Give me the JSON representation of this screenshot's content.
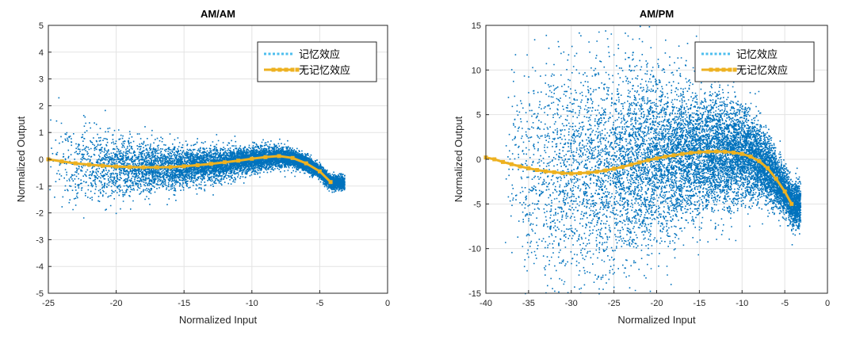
{
  "chart_data": [
    {
      "type": "scatter",
      "title": "AM/AM",
      "xlabel": "Normalized Input",
      "ylabel": "Normalized Output",
      "xlim": [
        -25,
        0
      ],
      "ylim": [
        -5,
        5
      ],
      "xticks": [
        -25,
        -20,
        -15,
        -10,
        -5,
        0
      ],
      "yticks": [
        -5,
        -4,
        -3,
        -2,
        -1,
        0,
        1,
        2,
        3,
        4,
        5
      ],
      "grid": true,
      "legend_position": "top-right",
      "scatter_color": "#0072BD",
      "series": [
        {
          "name": "记忆效应",
          "style": "scatter",
          "color": "#4DBEEE",
          "cloud": {
            "x_range": [
              -25,
              -3.2
            ],
            "center_curve_ref": "无记忆效应",
            "spread_at_x": [
              {
                "x": -25,
                "sd": 0.9
              },
              {
                "x": -20,
                "sd": 0.55
              },
              {
                "x": -15,
                "sd": 0.35
              },
              {
                "x": -10,
                "sd": 0.22
              },
              {
                "x": -5,
                "sd": 0.12
              }
            ],
            "points": 9000
          }
        },
        {
          "name": "无记忆效应",
          "style": "line-marker",
          "color": "#EDB120",
          "x": [
            -25,
            -24,
            -23,
            -22,
            -21,
            -20,
            -19,
            -18,
            -17,
            -16,
            -15,
            -14,
            -13,
            -12,
            -11,
            -10,
            -9,
            -8,
            -7,
            -6,
            -5,
            -4.2
          ],
          "y": [
            0.0,
            -0.08,
            -0.15,
            -0.2,
            -0.24,
            -0.27,
            -0.29,
            -0.3,
            -0.3,
            -0.29,
            -0.26,
            -0.22,
            -0.17,
            -0.11,
            -0.05,
            0.02,
            0.08,
            0.12,
            0.05,
            -0.15,
            -0.45,
            -0.85
          ]
        }
      ]
    },
    {
      "type": "scatter",
      "title": "AM/PM",
      "xlabel": "Normalized Input",
      "ylabel": "Normalized Output",
      "xlim": [
        -40,
        0
      ],
      "ylim": [
        -15,
        15
      ],
      "xticks": [
        -40,
        -35,
        -30,
        -25,
        -20,
        -15,
        -10,
        -5,
        0
      ],
      "yticks": [
        -15,
        -10,
        -5,
        0,
        5,
        10,
        15
      ],
      "grid": true,
      "legend_position": "top-right",
      "scatter_color": "#0072BD",
      "series": [
        {
          "name": "记忆效应",
          "style": "scatter",
          "color": "#4DBEEE",
          "cloud": {
            "x_range": [
              -38,
              -3.2
            ],
            "center_curve_ref": "无记忆效应",
            "spread_at_x": [
              {
                "x": -37,
                "sd": 6.0
              },
              {
                "x": -30,
                "sd": 7.0
              },
              {
                "x": -25,
                "sd": 6.0
              },
              {
                "x": -20,
                "sd": 4.5
              },
              {
                "x": -15,
                "sd": 3.4
              },
              {
                "x": -10,
                "sd": 2.6
              },
              {
                "x": -5,
                "sd": 1.2
              }
            ],
            "points": 11000
          }
        },
        {
          "name": "无记忆效应",
          "style": "line-marker",
          "color": "#EDB120",
          "x": [
            -40,
            -39,
            -38,
            -37,
            -36,
            -35,
            -34,
            -33,
            -32,
            -31,
            -30,
            -29,
            -28,
            -27,
            -26,
            -25,
            -24,
            -23,
            -22,
            -21,
            -20,
            -19,
            -18,
            -17,
            -16,
            -15,
            -14,
            -13,
            -12,
            -11,
            -10,
            -9,
            -8,
            -7,
            -6,
            -5,
            -4.2
          ],
          "y": [
            0.2,
            0.0,
            -0.3,
            -0.55,
            -0.8,
            -1.0,
            -1.2,
            -1.35,
            -1.45,
            -1.55,
            -1.6,
            -1.55,
            -1.5,
            -1.4,
            -1.25,
            -1.05,
            -0.85,
            -0.6,
            -0.35,
            -0.1,
            0.1,
            0.3,
            0.45,
            0.6,
            0.72,
            0.8,
            0.85,
            0.88,
            0.85,
            0.75,
            0.6,
            0.3,
            -0.2,
            -1.0,
            -2.2,
            -3.6,
            -5.0
          ]
        }
      ]
    }
  ]
}
